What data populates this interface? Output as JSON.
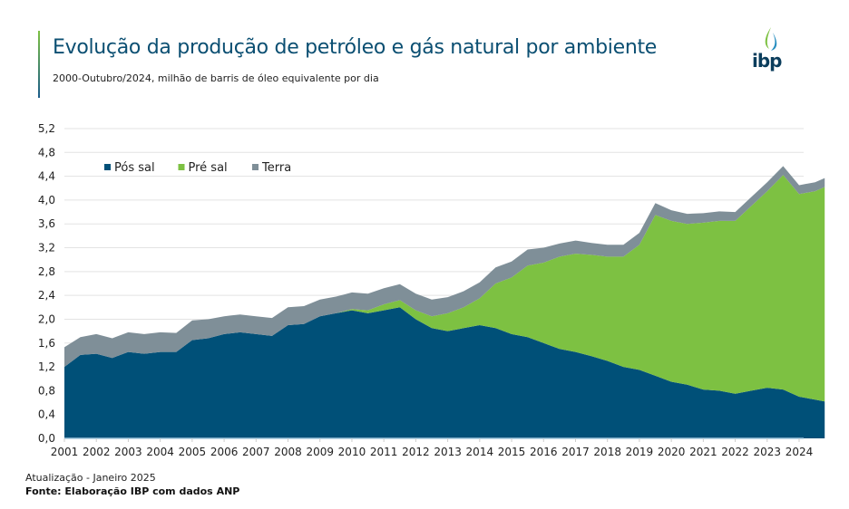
{
  "header": {
    "title": "Evolução da produção de petróleo e gás natural por ambiente",
    "subtitle": "2000-Outubro/2024, milhão de barris de óleo equivalente por dia",
    "logo_text": "ibp"
  },
  "footer": {
    "update": "Atualização - Janeiro 2025",
    "source": "Fonte: Elaboração IBP com dados ANP"
  },
  "chart_data": {
    "type": "area",
    "stacked": true,
    "title": "",
    "xlabel": "",
    "ylabel": "",
    "ylim": [
      0,
      5.2
    ],
    "yticks": [
      "0,0",
      "0,4",
      "0,8",
      "1,2",
      "1,6",
      "2,0",
      "2,4",
      "2,8",
      "3,2",
      "3,6",
      "4,0",
      "4,4",
      "4,8",
      "5,2"
    ],
    "xticks": [
      "2001",
      "2002",
      "2003",
      "2004",
      "2005",
      "2006",
      "2007",
      "2008",
      "2009",
      "2010",
      "2011",
      "2012",
      "2013",
      "2014",
      "2015",
      "2016",
      "2017",
      "2018",
      "2019",
      "2020",
      "2021",
      "2022",
      "2023",
      "2024"
    ],
    "grid": "horizontal",
    "legend_position": "top-left",
    "x": [
      2001,
      2001.5,
      2002,
      2002.5,
      2003,
      2003.5,
      2004,
      2004.5,
      2005,
      2005.5,
      2006,
      2006.5,
      2007,
      2007.5,
      2008,
      2008.5,
      2009,
      2009.5,
      2010,
      2010.5,
      2011,
      2011.5,
      2012,
      2012.5,
      2013,
      2013.5,
      2014,
      2014.5,
      2015,
      2015.5,
      2016,
      2016.5,
      2017,
      2017.5,
      2018,
      2018.5,
      2019,
      2019.5,
      2020,
      2020.5,
      2021,
      2021.5,
      2022,
      2022.5,
      2023,
      2023.5,
      2024,
      2024.5,
      2024.8
    ],
    "series": [
      {
        "name": "Pós sal",
        "color": "#005078",
        "values": [
          1.2,
          1.4,
          1.42,
          1.35,
          1.45,
          1.42,
          1.45,
          1.45,
          1.65,
          1.68,
          1.75,
          1.78,
          1.75,
          1.72,
          1.9,
          1.92,
          2.05,
          2.1,
          2.15,
          2.1,
          2.15,
          2.2,
          2.0,
          1.85,
          1.8,
          1.85,
          1.9,
          1.85,
          1.75,
          1.7,
          1.6,
          1.5,
          1.45,
          1.38,
          1.3,
          1.2,
          1.15,
          1.05,
          0.95,
          0.9,
          0.82,
          0.8,
          0.75,
          0.8,
          0.85,
          0.82,
          0.7,
          0.65,
          0.62
        ]
      },
      {
        "name": "Pré sal",
        "color": "#7dc142",
        "values": [
          0,
          0,
          0,
          0,
          0,
          0,
          0,
          0,
          0,
          0,
          0,
          0,
          0,
          0,
          0,
          0,
          0,
          0,
          0.02,
          0.05,
          0.1,
          0.12,
          0.15,
          0.2,
          0.3,
          0.35,
          0.45,
          0.75,
          0.95,
          1.2,
          1.35,
          1.55,
          1.65,
          1.7,
          1.75,
          1.85,
          2.1,
          2.7,
          2.7,
          2.7,
          2.8,
          2.85,
          2.9,
          3.1,
          3.3,
          3.6,
          3.4,
          3.5,
          3.6
        ]
      },
      {
        "name": "Terra",
        "color": "#7f8f98",
        "values": [
          0.33,
          0.3,
          0.33,
          0.33,
          0.33,
          0.33,
          0.33,
          0.32,
          0.33,
          0.32,
          0.3,
          0.3,
          0.3,
          0.3,
          0.3,
          0.3,
          0.28,
          0.28,
          0.28,
          0.28,
          0.27,
          0.27,
          0.28,
          0.28,
          0.27,
          0.27,
          0.27,
          0.27,
          0.27,
          0.27,
          0.25,
          0.22,
          0.22,
          0.2,
          0.2,
          0.2,
          0.2,
          0.2,
          0.18,
          0.17,
          0.16,
          0.16,
          0.15,
          0.15,
          0.15,
          0.15,
          0.15,
          0.15,
          0.15
        ]
      }
    ]
  }
}
